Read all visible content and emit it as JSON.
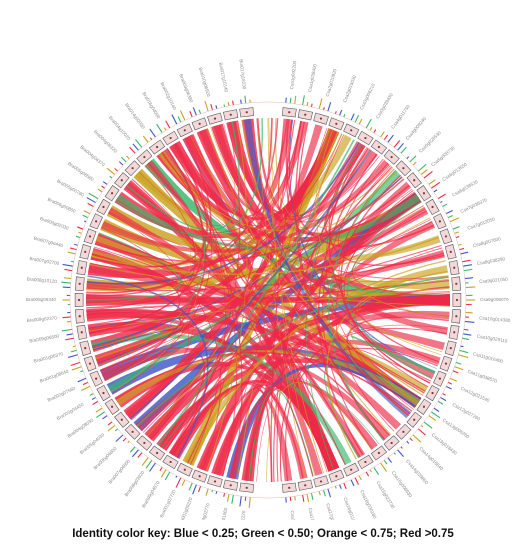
{
  "labels_left": [
    "Bra017g18230",
    "Bra017g10140",
    "Bra010g06920",
    "Bra003g06380",
    "Bra002g10140",
    "Bra016g04000",
    "Bra014g02030",
    "Bra004g10020",
    "Bra004g06320",
    "Bra004g04370",
    "Bra005g08580",
    "Bra005g00780",
    "Bra006g00860",
    "Bra006g02030",
    "Bra007g06440",
    "Bra007g02700",
    "Bra008g10120",
    "Bra008g06340",
    "Bra009g02370",
    "Bra009g06500",
    "Bra001g06370",
    "Bra001g08640",
    "Bra002g07560",
    "Bra003g04450",
    "Bra004g08030",
    "Bra005g04030",
    "Bra006g06800",
    "Bra007g04600",
    "Bra008g03920",
    "Bra009g04870",
    "Bra001g07720",
    "Bra002g09220",
    "Bra003g02770",
    "Bra004g01560",
    "Bra005g02220"
  ],
  "labels_right": [
    "Csa1g042200",
    "Csa1g038400",
    "Csa2g010920",
    "Csa2g015030",
    "Csa3g006210",
    "Csa3g039430",
    "Csa4g011750",
    "Csa4g009240",
    "Csa5g026530",
    "Csa5g008730",
    "Csa6g013550",
    "Csa6g038530",
    "Csa7g039370",
    "Csa7g012050",
    "Csa8g007600",
    "Csa8g038290",
    "Csa9g021050",
    "Csa9g009070",
    "Csa10g014380",
    "Csa10g029110",
    "Csa11g016400",
    "Csa11g038570",
    "Csa12g021540",
    "Csa12g027260",
    "Csa13g006260",
    "Csa13g018430",
    "Csa14g016840",
    "Csa14g039850",
    "Csa15g008930",
    "Csa15g023730",
    "Csa16g030180",
    "Csa16g011420",
    "Csa17g013560",
    "Csa17g039650",
    "Csa18g002150"
  ],
  "identity_levels": [
    {
      "name": "Blue",
      "threshold": 0.25,
      "color": "#3f57c8"
    },
    {
      "name": "Green",
      "threshold": 0.5,
      "color": "#35b86a"
    },
    {
      "name": "Orange",
      "threshold": 0.75,
      "color": "#c9a21e"
    },
    {
      "name": "Red",
      "threshold": 0.75,
      "color": "#ee2a47"
    }
  ],
  "key": {
    "text": "Identity color key:  Blue < 0.25;  Green < 0.50;  Orange < 0.75;  Red >0.75"
  }
}
